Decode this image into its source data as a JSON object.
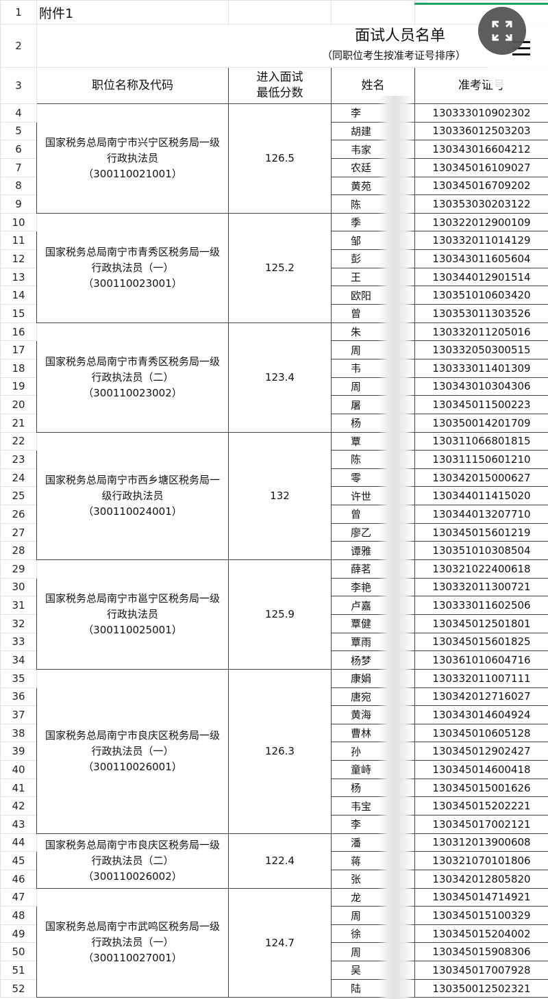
{
  "sheet": {
    "row1_text": "附件1",
    "title": "面试人员名单",
    "subtitle": "（同职位考生按准考证号排序）",
    "headers": {
      "position": "职位名称及代码",
      "min_score": "进入面试\n最低分数",
      "name": "姓名",
      "exam_no": "准考证号"
    }
  },
  "groups": [
    {
      "position": "国家税务总局南宁市兴宁区税务局一级\n行政执法员\n（300110021001）",
      "min_score": "126.5",
      "rows": [
        [
          "李",
          "130333010902302"
        ],
        [
          "胡建",
          "130336012503203"
        ],
        [
          "韦家",
          "130343016604212"
        ],
        [
          "农廷",
          "130345016109027"
        ],
        [
          "黄苑",
          "130345016709202"
        ],
        [
          "陈",
          "130353030203122"
        ]
      ]
    },
    {
      "position": "国家税务总局南宁市青秀区税务局一级\n行政执法员（一）\n（300110023001）",
      "min_score": "125.2",
      "rows": [
        [
          "季",
          "130322012900109"
        ],
        [
          "邹",
          "130332011014129"
        ],
        [
          "彭",
          "130343011605604"
        ],
        [
          "王",
          "130344012901514"
        ],
        [
          "欧阳",
          "130351010603420"
        ],
        [
          "曾",
          "130353011303526"
        ]
      ]
    },
    {
      "position": "国家税务总局南宁市青秀区税务局一级\n行政执法员（二）\n（300110023002）",
      "min_score": "123.4",
      "rows": [
        [
          "朱",
          "130332011205016"
        ],
        [
          "周",
          "130332050300515"
        ],
        [
          "韦",
          "130333011401309"
        ],
        [
          "周",
          "130343010304306"
        ],
        [
          "屠",
          "130345011500223"
        ],
        [
          "杨",
          "130350014201709"
        ]
      ]
    },
    {
      "position": "国家税务总局南宁市西乡塘区税务局一\n级行政执法员\n（300110024001）",
      "min_score": "132",
      "rows": [
        [
          "覃",
          "130311066801815"
        ],
        [
          "陈",
          "130311150601210"
        ],
        [
          "零",
          "130342015000627"
        ],
        [
          "许世",
          "130344011415020"
        ],
        [
          "曾",
          "130344013207710"
        ],
        [
          "廖乙",
          "130345015601219"
        ],
        [
          "谭雅",
          "130351010308504"
        ]
      ]
    },
    {
      "position": "国家税务总局南宁市邕宁区税务局一级\n行政执法员\n（300110025001）",
      "min_score": "125.9",
      "rows": [
        [
          "薛茗",
          "130321022400618"
        ],
        [
          "李艳",
          "130332011300721"
        ],
        [
          "卢嘉",
          "130333011602506"
        ],
        [
          "覃健",
          "130345012501801"
        ],
        [
          "覃雨",
          "130345015601825"
        ],
        [
          "杨梦",
          "130361010604716"
        ]
      ]
    },
    {
      "position": "国家税务总局南宁市良庆区税务局一级\n行政执法员（一）\n（300110026001）",
      "min_score": "126.3",
      "rows": [
        [
          "康娟",
          "130332011007111"
        ],
        [
          "唐宛",
          "130342012716027"
        ],
        [
          "黄海",
          "130343014604924"
        ],
        [
          "曹林",
          "130345010605128"
        ],
        [
          "孙",
          "130345012902427"
        ],
        [
          "童峙",
          "130345014600418"
        ],
        [
          "杨",
          "130345015001626"
        ],
        [
          "韦宝",
          "130345015202221"
        ],
        [
          "李",
          "130345017002121"
        ]
      ]
    },
    {
      "position": "国家税务总局南宁市良庆区税务局一级\n行政执法员（二）\n（300110026002）",
      "min_score": "122.4",
      "rows": [
        [
          "潘",
          "130312013900608"
        ],
        [
          "蒋",
          "130321070101806"
        ],
        [
          "张",
          "130342012805820"
        ]
      ]
    },
    {
      "position": "国家税务总局南宁市武鸣区税务局一级\n行政执法员（一）\n（300110027001）",
      "min_score": "124.7",
      "rows": [
        [
          "龙",
          "130345014714921"
        ],
        [
          "周",
          "130345015100329"
        ],
        [
          "徐",
          "130345015204002"
        ],
        [
          "周",
          "130345015908306"
        ],
        [
          "吴",
          "130345017007928"
        ],
        [
          "陆",
          "130350012502321"
        ]
      ]
    }
  ],
  "overlay": {
    "fab_icon": "expand-icon",
    "menu_icon": "hamburger-menu-icon",
    "accent": "#1aa260"
  }
}
